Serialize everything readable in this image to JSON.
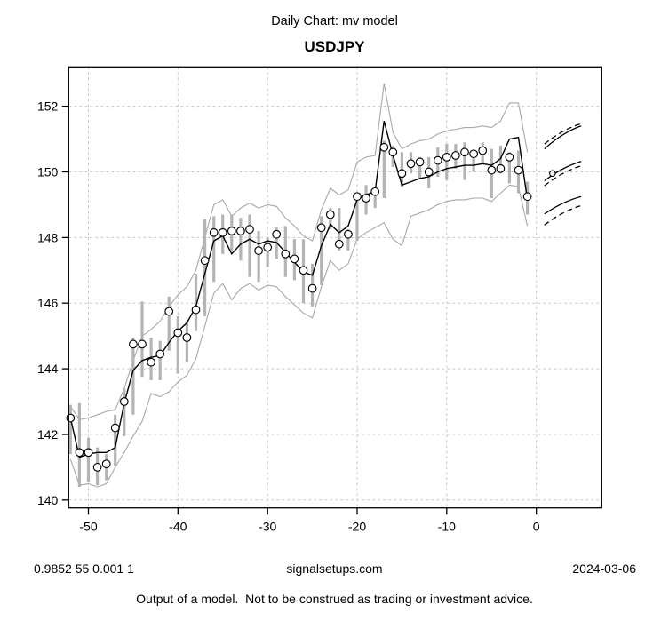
{
  "titles": {
    "top": "Daily Chart: mv model",
    "main": "USDJPY"
  },
  "annotations": {
    "left": "0.9852 55 0.001 1",
    "center": "signalsetups.com",
    "right": "2024-03-06",
    "disclaimer": "Output of a model.  Not to be construed as trading or investment advice."
  },
  "colors": {
    "background": "#ffffff",
    "foreground": "#000000",
    "grid": "#c9c9c9",
    "range_bar": "#b4b4b4",
    "band": "#a8a8a8",
    "marker_fill": "#ffffff"
  },
  "chart_data": {
    "type": "line",
    "title": "USDJPY",
    "xlabel": "",
    "ylabel": "",
    "xlim": [
      -52.2,
      7.3
    ],
    "ylim": [
      139.76,
      153.2
    ],
    "grid": true,
    "legend": false,
    "x_ticks": [
      -50,
      -40,
      -30,
      -20,
      -10,
      0
    ],
    "y_ticks": [
      140,
      142,
      144,
      146,
      148,
      150,
      152
    ],
    "x": [
      -52,
      -51,
      -50,
      -49,
      -48,
      -47,
      -46,
      -45,
      -44,
      -43,
      -42,
      -41,
      -40,
      -39,
      -38,
      -37,
      -36,
      -35,
      -34,
      -33,
      -32,
      -31,
      -30,
      -29,
      -28,
      -27,
      -26,
      -25,
      -24,
      -23,
      -22,
      -21,
      -20,
      -19,
      -18,
      -17,
      -16,
      -15,
      -14,
      -13,
      -12,
      -11,
      -10,
      -9,
      -8,
      -7,
      -6,
      -5,
      -4,
      -3,
      -2,
      -1
    ],
    "close": [
      142.5,
      141.45,
      141.45,
      141.0,
      141.1,
      142.2,
      143.0,
      144.75,
      144.75,
      144.2,
      144.45,
      145.75,
      145.1,
      144.95,
      145.8,
      147.3,
      148.15,
      148.15,
      148.2,
      148.2,
      148.25,
      147.6,
      147.7,
      148.1,
      147.5,
      147.35,
      147.0,
      146.45,
      148.3,
      148.7,
      147.8,
      148.1,
      149.25,
      149.2,
      149.4,
      150.75,
      150.6,
      149.95,
      150.25,
      150.3,
      150.0,
      150.35,
      150.45,
      150.5,
      150.6,
      150.55,
      150.65,
      150.05,
      150.1,
      150.45,
      150.05,
      149.25
    ],
    "high": [
      142.9,
      142.95,
      141.9,
      141.6,
      141.4,
      142.6,
      143.4,
      144.95,
      146.05,
      144.95,
      144.85,
      146.2,
      145.6,
      145.45,
      146.9,
      148.55,
      148.65,
      148.7,
      148.7,
      148.6,
      148.7,
      148.2,
      148.0,
      148.3,
      148.35,
      147.95,
      147.95,
      147.2,
      148.65,
      148.9,
      148.9,
      148.25,
      149.25,
      149.6,
      149.45,
      150.95,
      150.8,
      150.6,
      150.6,
      150.45,
      150.45,
      150.75,
      150.85,
      150.85,
      150.9,
      150.65,
      150.9,
      150.7,
      150.8,
      150.6,
      150.65,
      149.7
    ],
    "low": [
      141.4,
      140.4,
      140.55,
      140.45,
      140.6,
      141.05,
      141.95,
      142.6,
      143.75,
      143.65,
      143.65,
      144.55,
      143.85,
      144.2,
      145.15,
      145.6,
      146.65,
      147.5,
      147.6,
      147.3,
      146.8,
      146.65,
      147.1,
      147.35,
      146.8,
      146.7,
      146.0,
      145.9,
      146.55,
      148.25,
      147.6,
      147.6,
      147.9,
      148.7,
      148.9,
      149.2,
      150.15,
      149.55,
      149.95,
      149.8,
      149.5,
      149.85,
      149.75,
      150.1,
      149.75,
      150.0,
      150.25,
      149.2,
      149.95,
      149.65,
      149.35,
      148.7
    ],
    "fit": [
      142.5,
      141.3,
      141.4,
      141.45,
      141.45,
      141.6,
      142.95,
      143.95,
      144.25,
      144.35,
      144.4,
      144.8,
      145.15,
      145.4,
      145.9,
      146.9,
      147.9,
      148.05,
      147.5,
      147.8,
      147.95,
      147.8,
      147.9,
      147.85,
      147.55,
      147.25,
      146.95,
      146.85,
      147.75,
      148.4,
      148.15,
      148.35,
      149.15,
      149.3,
      149.4,
      151.55,
      150.5,
      149.6,
      149.7,
      149.8,
      149.85,
      150.0,
      150.1,
      150.15,
      150.2,
      150.2,
      150.25,
      150.2,
      150.4,
      151.0,
      151.05,
      149.15
    ],
    "upper_band": [
      142.85,
      142.45,
      142.5,
      142.6,
      142.7,
      142.75,
      143.4,
      144.25,
      145.0,
      145.2,
      145.45,
      145.9,
      146.25,
      146.5,
      147.0,
      148.0,
      149.0,
      149.15,
      148.65,
      148.9,
      149.05,
      148.9,
      149.0,
      148.95,
      148.6,
      148.35,
      148.05,
      147.9,
      148.85,
      149.5,
      149.3,
      149.45,
      150.3,
      150.45,
      150.5,
      152.7,
      151.2,
      150.7,
      150.85,
      150.95,
      151.0,
      151.15,
      151.25,
      151.3,
      151.35,
      151.35,
      151.4,
      151.35,
      151.55,
      152.1,
      152.1,
      150.6
    ],
    "lower_band": [
      141.25,
      140.45,
      140.5,
      140.4,
      140.5,
      141.0,
      141.45,
      141.95,
      142.4,
      143.25,
      143.15,
      143.3,
      143.6,
      143.8,
      144.3,
      145.3,
      146.3,
      146.6,
      146.1,
      146.45,
      146.6,
      146.4,
      146.55,
      146.5,
      146.2,
      145.95,
      145.7,
      145.55,
      146.5,
      147.3,
      147.0,
      147.2,
      147.95,
      148.15,
      148.3,
      148.45,
      147.95,
      147.75,
      148.65,
      148.75,
      148.85,
      149.0,
      149.1,
      149.15,
      149.15,
      149.2,
      149.2,
      149.1,
      149.35,
      149.6,
      149.55,
      148.35
    ],
    "forecast": {
      "x_start": 0.9,
      "x_end": 5.0,
      "marker": {
        "x": 1.8,
        "value": 149.95
      },
      "lines": [
        {
          "name": "upper-solid",
          "style": "solid",
          "start": 150.7,
          "end": 151.4
        },
        {
          "name": "upper-dashed",
          "style": "dashed",
          "start": 150.85,
          "end": 151.47
        },
        {
          "name": "mid-solid",
          "style": "solid",
          "start": 149.73,
          "end": 150.32
        },
        {
          "name": "mid-dashed",
          "style": "dashed",
          "start": 149.58,
          "end": 150.18
        },
        {
          "name": "lower-solid",
          "style": "solid",
          "start": 148.72,
          "end": 149.25
        },
        {
          "name": "lower-dashed",
          "style": "dashed",
          "start": 148.38,
          "end": 148.97
        }
      ]
    }
  }
}
